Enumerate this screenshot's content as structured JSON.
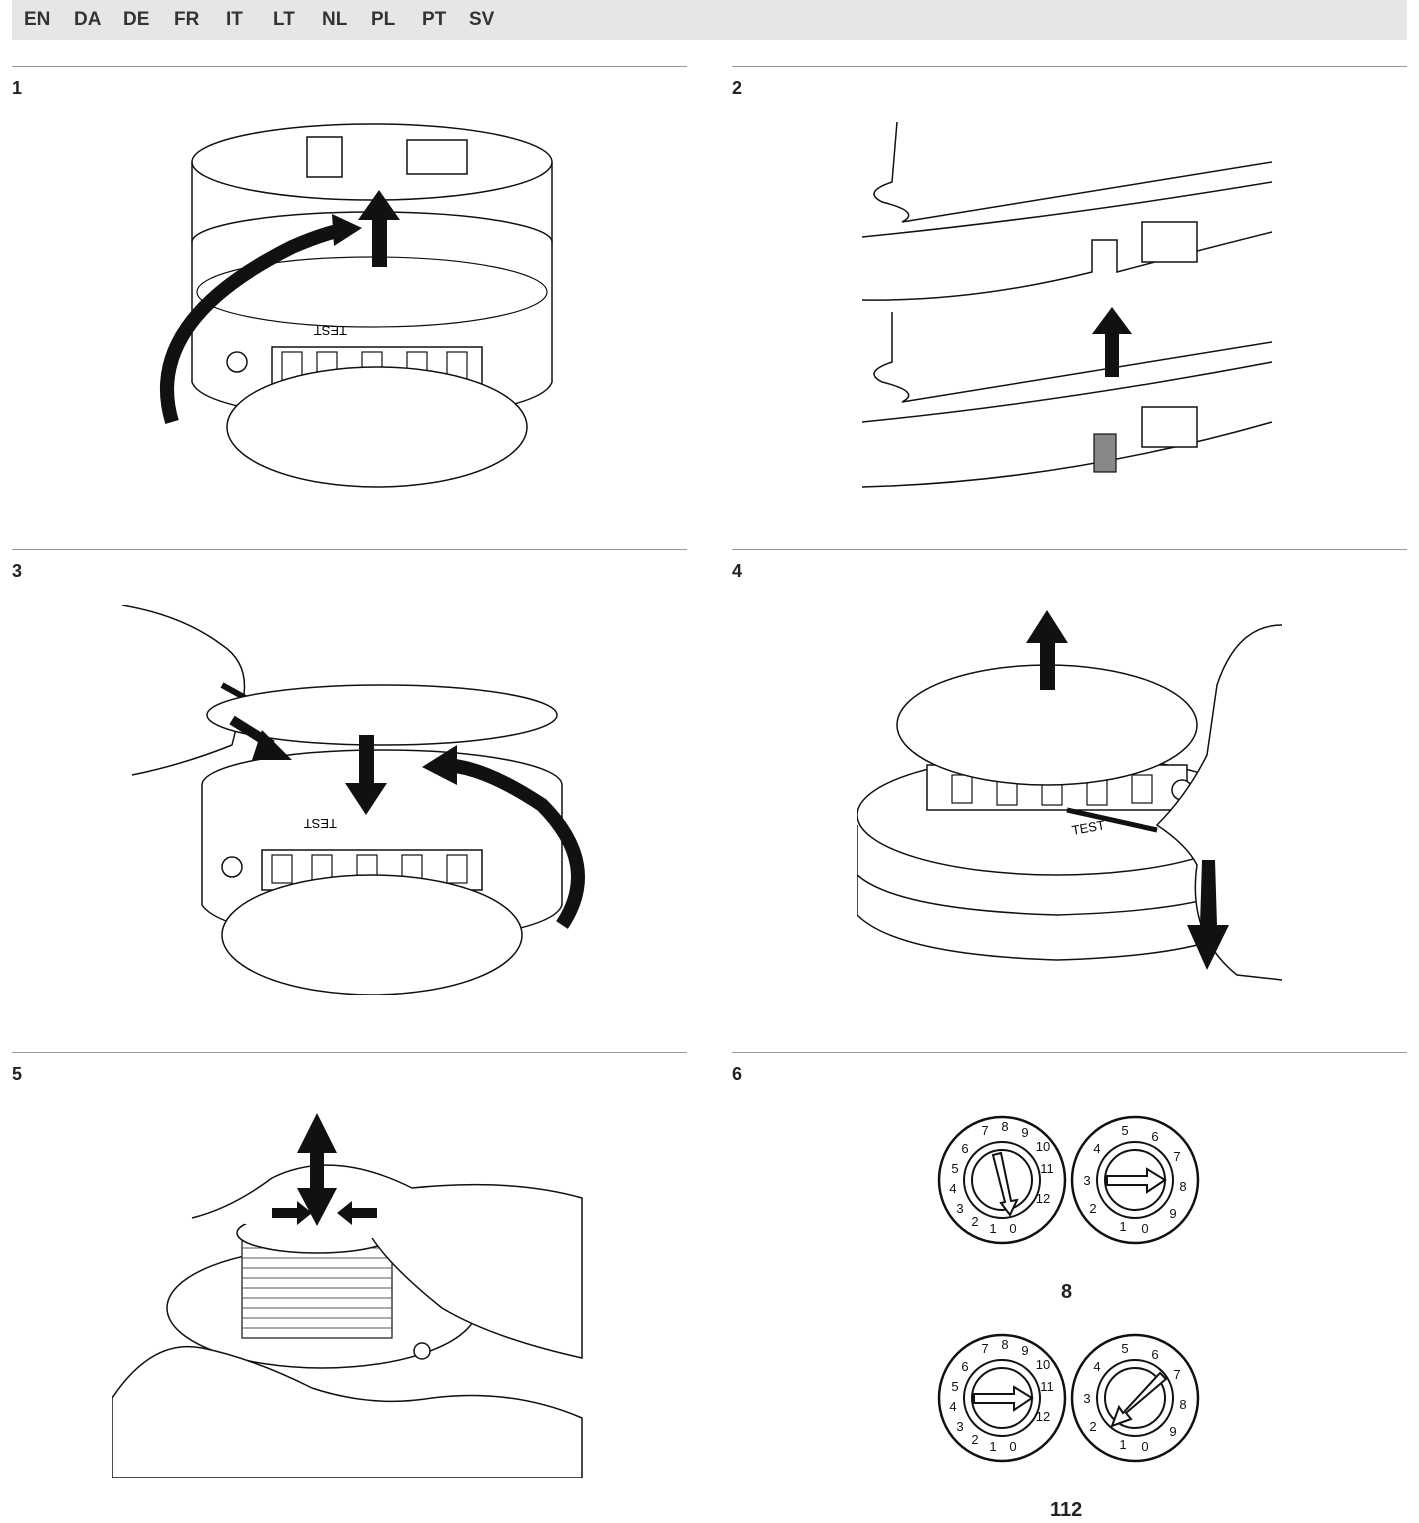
{
  "languages": [
    "EN",
    "DA",
    "DE",
    "FR",
    "IT",
    "LT",
    "NL",
    "PL",
    "PT",
    "SV"
  ],
  "steps": [
    {
      "num": "1"
    },
    {
      "num": "2"
    },
    {
      "num": "3"
    },
    {
      "num": "4"
    },
    {
      "num": "5"
    },
    {
      "num": "6"
    }
  ],
  "device_label": "TEST",
  "dial_examples": [
    {
      "caption": "8"
    },
    {
      "caption": "112"
    }
  ],
  "dial_left_numbers": [
    "0",
    "1",
    "2",
    "3",
    "4",
    "5",
    "6",
    "7",
    "8",
    "9",
    "10",
    "11",
    "12"
  ],
  "dial_right_numbers": [
    "0",
    "1",
    "2",
    "3",
    "4",
    "5",
    "6",
    "7",
    "8",
    "9"
  ],
  "icons": {
    "arrow": "black-arrow-icon",
    "curved_arrow": "curved-arrow-icon"
  }
}
